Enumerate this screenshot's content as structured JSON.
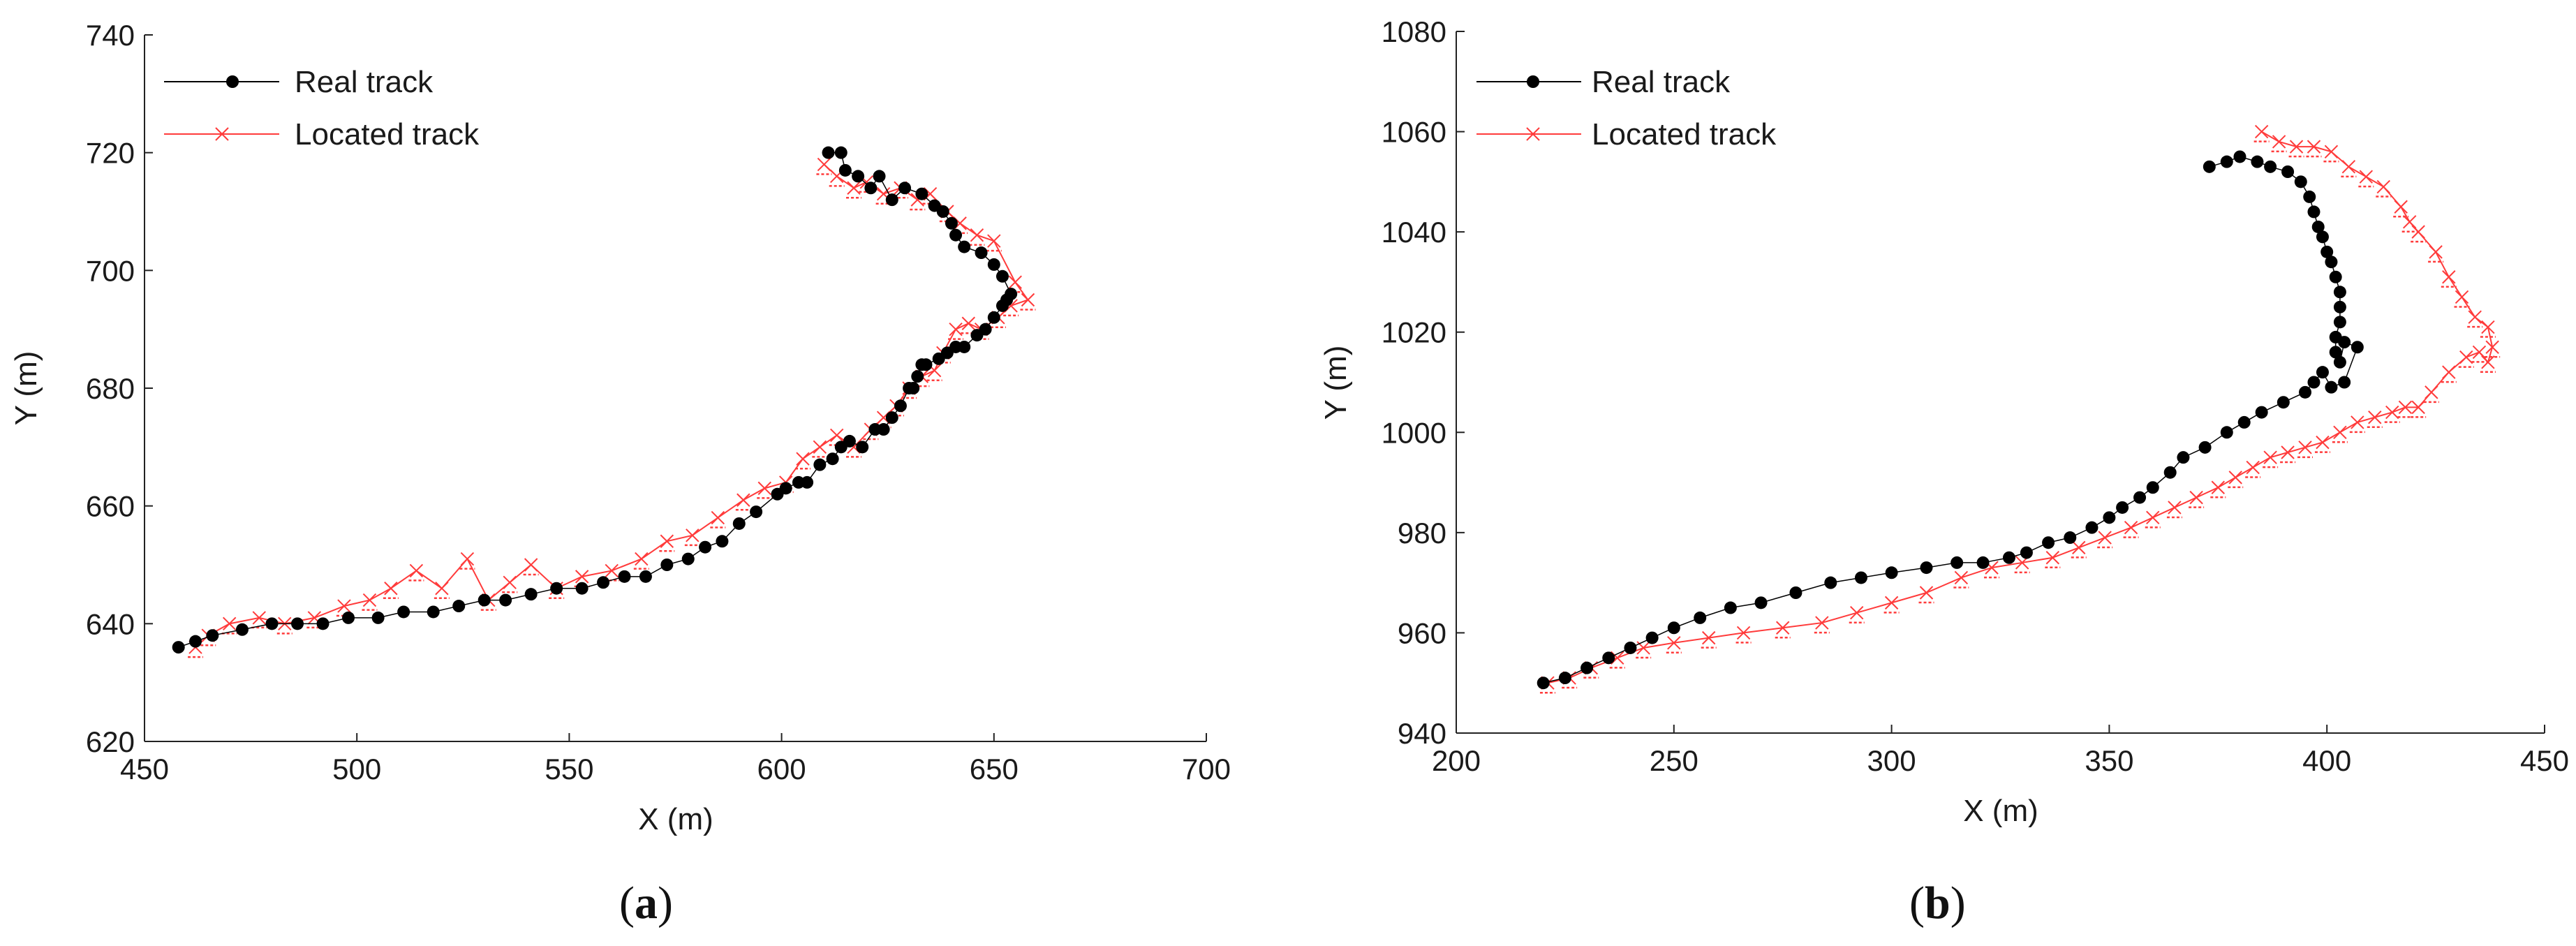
{
  "chart_data": [
    {
      "type": "line",
      "panel_label": "a",
      "xlabel": "X (m)",
      "ylabel": "Y (m)",
      "xlim": [
        450,
        700
      ],
      "ylim": [
        620,
        740
      ],
      "xticks": [
        450,
        500,
        550,
        600,
        650,
        700
      ],
      "yticks": [
        620,
        640,
        660,
        680,
        700,
        720,
        740
      ],
      "grid": false,
      "legend_position": "top-left",
      "series": [
        {
          "name": "Real track",
          "color": "#000000",
          "marker": "filled-circle",
          "x": [
            611,
            614,
            615,
            618,
            621,
            623,
            626,
            629,
            633,
            636,
            638,
            640,
            641,
            643,
            647,
            650,
            652,
            654,
            653,
            652,
            650,
            648,
            646,
            643,
            641,
            639,
            637,
            634,
            633,
            632,
            631,
            630,
            628,
            626,
            624,
            622,
            619,
            616,
            614,
            612,
            609,
            606,
            604,
            601,
            599,
            594,
            590,
            586,
            582,
            578,
            573,
            568,
            563,
            558,
            553,
            547,
            541,
            535,
            530,
            524,
            518,
            511,
            505,
            498,
            492,
            486,
            480,
            473,
            466,
            462,
            458
          ],
          "y": [
            720,
            720,
            717,
            716,
            714,
            716,
            712,
            714,
            713,
            711,
            710,
            708,
            706,
            704,
            703,
            701,
            699,
            696,
            695,
            694,
            692,
            690,
            689,
            687,
            687,
            686,
            685,
            684,
            684,
            682,
            680,
            680,
            677,
            675,
            673,
            673,
            670,
            671,
            670,
            668,
            667,
            664,
            664,
            663,
            662,
            659,
            657,
            654,
            653,
            651,
            650,
            648,
            648,
            647,
            646,
            646,
            645,
            644,
            644,
            643,
            642,
            642,
            641,
            641,
            640,
            640,
            640,
            639,
            638,
            637,
            636
          ]
        },
        {
          "name": "Located track",
          "color": "#ff3b3b",
          "marker": "x",
          "x": [
            610,
            613,
            617,
            620,
            624,
            628,
            632,
            635,
            639,
            642,
            646,
            650,
            655,
            658,
            654,
            651,
            647,
            644,
            641,
            638,
            636,
            633,
            630,
            627,
            624,
            621,
            617,
            613,
            609,
            605,
            601,
            596,
            591,
            585,
            579,
            573,
            567,
            560,
            553,
            547,
            541,
            536,
            531,
            526,
            520,
            514,
            508,
            503,
            497,
            490,
            483,
            477,
            470,
            465,
            462
          ],
          "y": [
            718,
            716,
            714,
            715,
            713,
            714,
            712,
            713,
            710,
            708,
            706,
            705,
            698,
            695,
            694,
            692,
            690,
            691,
            690,
            686,
            683,
            682,
            680,
            677,
            675,
            673,
            670,
            672,
            670,
            668,
            664,
            663,
            661,
            658,
            655,
            654,
            651,
            649,
            648,
            646,
            650,
            647,
            644,
            651,
            646,
            649,
            646,
            644,
            643,
            641,
            640,
            641,
            640,
            638,
            636
          ]
        }
      ]
    },
    {
      "type": "line",
      "panel_label": "b",
      "xlabel": "X (m)",
      "ylabel": "Y (m)",
      "xlim": [
        200,
        450
      ],
      "ylim": [
        940,
        1080
      ],
      "xticks": [
        200,
        250,
        300,
        350,
        400,
        450
      ],
      "yticks": [
        940,
        960,
        980,
        1000,
        1020,
        1040,
        1060,
        1080
      ],
      "grid": false,
      "legend_position": "top-left",
      "series": [
        {
          "name": "Real track",
          "color": "#000000",
          "marker": "filled-circle",
          "x": [
            373,
            377,
            380,
            384,
            387,
            391,
            394,
            396,
            397,
            398,
            399,
            400,
            401,
            402,
            403,
            403,
            403,
            402,
            402,
            403,
            404,
            407,
            404,
            401,
            399,
            397,
            395,
            390,
            385,
            381,
            377,
            372,
            367,
            364,
            360,
            357,
            353,
            350,
            346,
            341,
            336,
            331,
            327,
            321,
            315,
            308,
            300,
            293,
            286,
            278,
            270,
            263,
            256,
            250,
            245,
            240,
            235,
            230,
            225,
            220
          ],
          "y": [
            1053,
            1054,
            1055,
            1054,
            1053,
            1052,
            1050,
            1047,
            1044,
            1041,
            1039,
            1036,
            1034,
            1031,
            1028,
            1025,
            1022,
            1019,
            1016,
            1014,
            1018,
            1017,
            1010,
            1009,
            1012,
            1010,
            1008,
            1006,
            1004,
            1002,
            1000,
            997,
            995,
            992,
            989,
            987,
            985,
            983,
            981,
            979,
            978,
            976,
            975,
            974,
            974,
            973,
            972,
            971,
            970,
            968,
            966,
            965,
            963,
            961,
            959,
            957,
            955,
            953,
            951,
            950
          ]
        },
        {
          "name": "Located track",
          "color": "#ff3b3b",
          "marker": "x",
          "x": [
            385,
            389,
            393,
            397,
            401,
            405,
            409,
            413,
            417,
            419,
            421,
            425,
            428,
            431,
            434,
            437,
            438,
            437,
            435,
            432,
            428,
            424,
            421,
            418,
            415,
            411,
            407,
            403,
            399,
            395,
            391,
            387,
            383,
            379,
            375,
            370,
            365,
            360,
            355,
            349,
            343,
            337,
            330,
            323,
            316,
            308,
            300,
            292,
            284,
            275,
            266,
            258,
            250,
            243,
            237,
            231,
            226,
            221
          ],
          "y": [
            1060,
            1058,
            1057,
            1057,
            1056,
            1053,
            1051,
            1049,
            1045,
            1042,
            1040,
            1036,
            1031,
            1027,
            1023,
            1021,
            1017,
            1014,
            1016,
            1015,
            1012,
            1008,
            1005,
            1005,
            1004,
            1003,
            1002,
            1000,
            998,
            997,
            996,
            995,
            993,
            991,
            989,
            987,
            985,
            983,
            981,
            979,
            977,
            975,
            974,
            973,
            971,
            968,
            966,
            964,
            962,
            961,
            960,
            959,
            958,
            957,
            955,
            953,
            951,
            950
          ]
        }
      ]
    }
  ]
}
